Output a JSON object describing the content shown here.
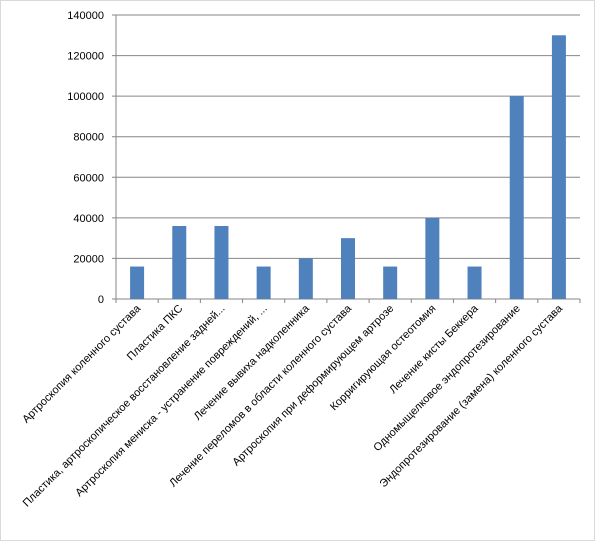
{
  "chart_data": {
    "type": "bar",
    "categories": [
      "Артроскопия коленного сустава",
      "Пластика ПКС",
      "Пластика, артроскопическое восстановление задней...",
      "Артроскопия мениска - устранение повреждений, ...",
      "Лечение вывиха надколенника",
      "Лечение переломов в области коленного сустава",
      "Артроскопия при деформирующем  артрозе",
      "Корригирующая остеотомия",
      "Лечение  кисты Беккера",
      "Одномыщелковое эндопротезирование",
      "Эндопротезирование (замена) коленного сустава"
    ],
    "values": [
      16000,
      36000,
      36000,
      16000,
      20000,
      30000,
      16000,
      40000,
      16000,
      100000,
      130000
    ],
    "color": "#4f81bd",
    "ylim": [
      0,
      140000
    ],
    "yticks": [
      0,
      20000,
      40000,
      60000,
      80000,
      100000,
      120000,
      140000
    ],
    "grid": true
  }
}
